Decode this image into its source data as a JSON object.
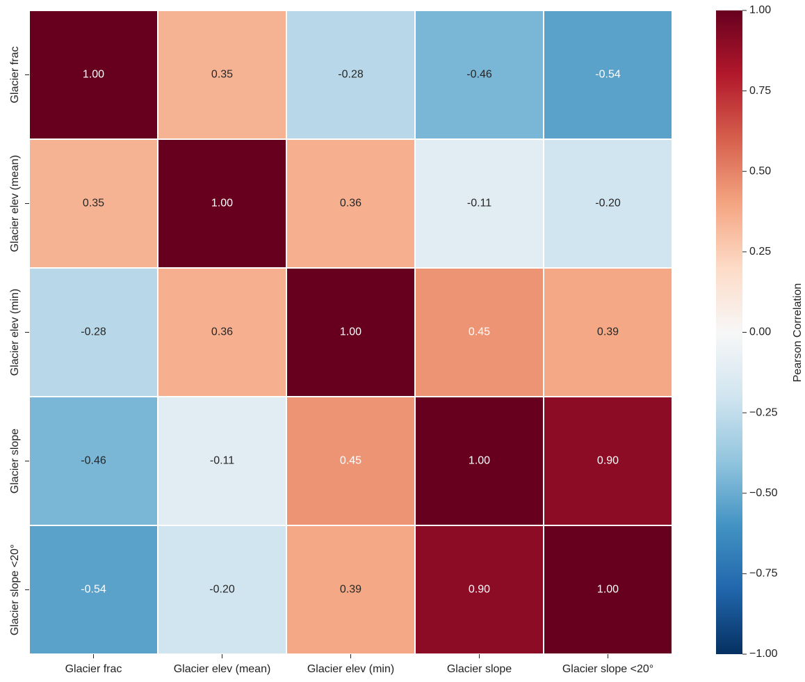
{
  "chart_data": {
    "type": "heatmap",
    "x_categories": [
      "Glacier frac",
      "Glacier elev (mean)",
      "Glacier elev (min)",
      "Glacier slope",
      "Glacier slope <20°"
    ],
    "y_categories": [
      "Glacier frac",
      "Glacier elev (mean)",
      "Glacier elev (min)",
      "Glacier slope",
      "Glacier slope <20°"
    ],
    "values": [
      [
        1,
        0.35,
        -0.28,
        -0.46,
        -0.54
      ],
      [
        0.35,
        1,
        0.36,
        -0.11,
        -0.2
      ],
      [
        -0.28,
        0.36,
        1,
        0.45,
        0.39
      ],
      [
        -0.46,
        -0.11,
        0.45,
        1,
        0.9
      ],
      [
        -0.54,
        -0.2,
        0.39,
        0.9,
        1
      ]
    ],
    "value_labels": [
      [
        "1.00",
        "0.35",
        "-0.28",
        "-0.46",
        "-0.54"
      ],
      [
        "0.35",
        "1.00",
        "0.36",
        "-0.11",
        "-0.20"
      ],
      [
        "-0.28",
        "0.36",
        "1.00",
        "0.45",
        "0.39"
      ],
      [
        "-0.46",
        "-0.11",
        "0.45",
        "1.00",
        "0.90"
      ],
      [
        "-0.54",
        "-0.20",
        "0.39",
        "0.90",
        "1.00"
      ]
    ],
    "colormap": [
      "#053061",
      "#2166ac",
      "#4393c3",
      "#92c5de",
      "#d1e5f0",
      "#f7f7f7",
      "#fddbc7",
      "#f4a582",
      "#d6604d",
      "#b2182b",
      "#67001f"
    ],
    "colorbar_label": "Pearson Correlation",
    "zlim": [
      -1,
      1
    ],
    "zticks": [
      {
        "value": -1,
        "label": "−1.00"
      },
      {
        "value": -0.75,
        "label": "−0.75"
      },
      {
        "value": -0.5,
        "label": "−0.50"
      },
      {
        "value": -0.25,
        "label": "−0.25"
      },
      {
        "value": 0,
        "label": "0.00"
      },
      {
        "value": 0.25,
        "label": "0.25"
      },
      {
        "value": 0.5,
        "label": "0.50"
      },
      {
        "value": 0.75,
        "label": "0.75"
      },
      {
        "value": 1,
        "label": "1.00"
      }
    ]
  }
}
